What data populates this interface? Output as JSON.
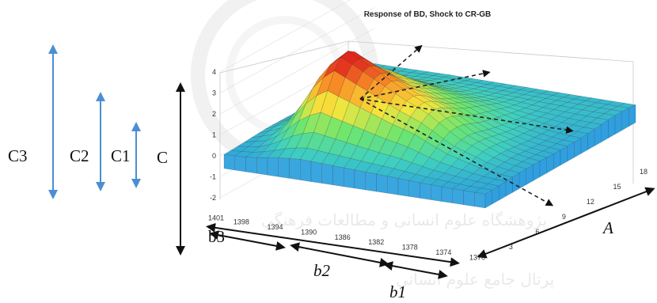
{
  "chart_data": {
    "type": "surface",
    "title": "Response of BD, Shock to CR-GB",
    "z_ticks": [
      "-2",
      "-1",
      "0",
      "1",
      "2",
      "3",
      "4"
    ],
    "zlim": [
      -2,
      4
    ],
    "year_ticks": [
      "1401",
      "1398",
      "1394",
      "1390",
      "1386",
      "1382",
      "1378",
      "1374",
      "1370"
    ],
    "horizon_ticks": [
      "3",
      "6",
      "9",
      "12",
      "15",
      "18"
    ],
    "ridge_profile": [
      {
        "year": 1370,
        "peak": 0.1
      },
      {
        "year": 1372,
        "peak": 0.2
      },
      {
        "year": 1374,
        "peak": 0.4
      },
      {
        "year": 1376,
        "peak": 0.7
      },
      {
        "year": 1378,
        "peak": 1.0
      },
      {
        "year": 1380,
        "peak": 1.5
      },
      {
        "year": 1382,
        "peak": 2.0
      },
      {
        "year": 1384,
        "peak": 2.3
      },
      {
        "year": 1386,
        "peak": 2.7
      },
      {
        "year": 1388,
        "peak": 3.1
      },
      {
        "year": 1390,
        "peak": 3.5
      },
      {
        "year": 1392,
        "peak": 3.9
      },
      {
        "year": 1394,
        "peak": 3.2
      },
      {
        "year": 1396,
        "peak": 1.8
      },
      {
        "year": 1398,
        "peak": 0.6
      },
      {
        "year": 1401,
        "peak": 0.1
      }
    ]
  },
  "annotations": {
    "c3": "C3",
    "c2": "C2",
    "c1": "C1",
    "c": "C",
    "a": "A",
    "b1": "b1",
    "b2": "b2",
    "b3": "b3"
  },
  "colors": {
    "arrow_blue": "#4a8fd4",
    "arrow_black": "#111111"
  },
  "watermark": [
    "پژوهشگاه علوم انسانی و مطالعات فرهنگی",
    "پرتال جامع علوم انسانی"
  ]
}
